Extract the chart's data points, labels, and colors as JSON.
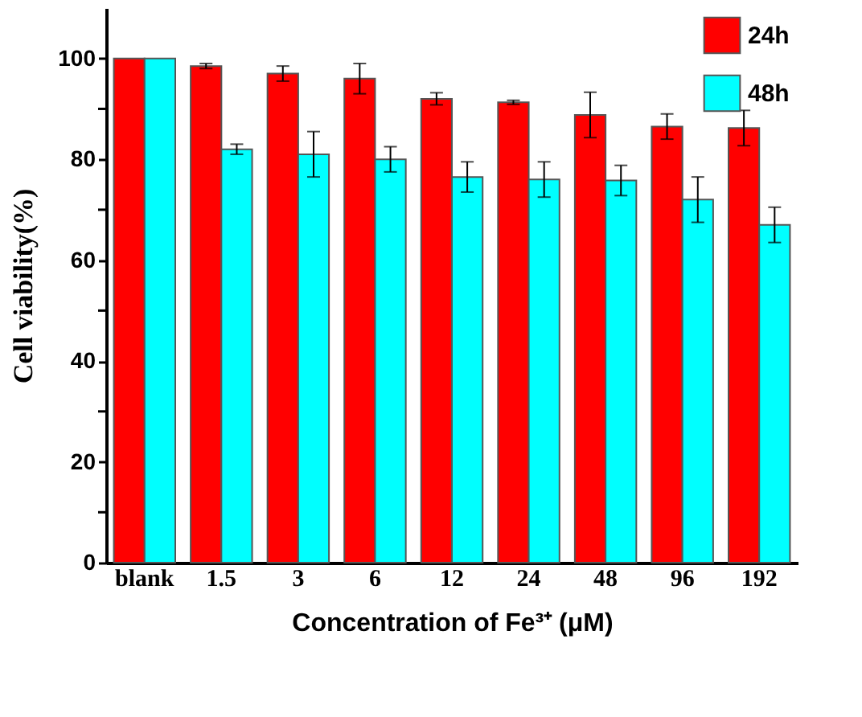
{
  "chart_data": {
    "type": "bar",
    "xlabel": "Concentration of Fe³⁺ (μM)",
    "ylabel": "Cell viability(%)",
    "categories": [
      "blank",
      "1.5",
      "3",
      "6",
      "12",
      "24",
      "48",
      "96",
      "192"
    ],
    "series": [
      {
        "name": "24h",
        "color": "#ff0000",
        "values": [
          100,
          98.5,
          97,
          96,
          92,
          91.3,
          88.8,
          86.5,
          86.2
        ],
        "errors": [
          null,
          0.5,
          1.5,
          3,
          1.2,
          0.4,
          4.5,
          2.5,
          3.5
        ]
      },
      {
        "name": "48h",
        "color": "#00ffff",
        "values": [
          100,
          82,
          81,
          80,
          76.5,
          76,
          75.8,
          72,
          67
        ],
        "errors": [
          null,
          1,
          4.5,
          2.5,
          3,
          3.5,
          3,
          4.5,
          3.5
        ]
      }
    ],
    "ylim": [
      0,
      110
    ],
    "yticks": [
      0,
      {
        "value": 10,
        "label": null
      },
      20,
      {
        "value": 30,
        "label": null
      },
      40,
      {
        "value": 50,
        "label": null
      },
      60,
      {
        "value": 70,
        "label": null
      },
      80,
      {
        "value": 90,
        "label": null
      },
      100
    ],
    "grid": false,
    "legend": "top right"
  }
}
